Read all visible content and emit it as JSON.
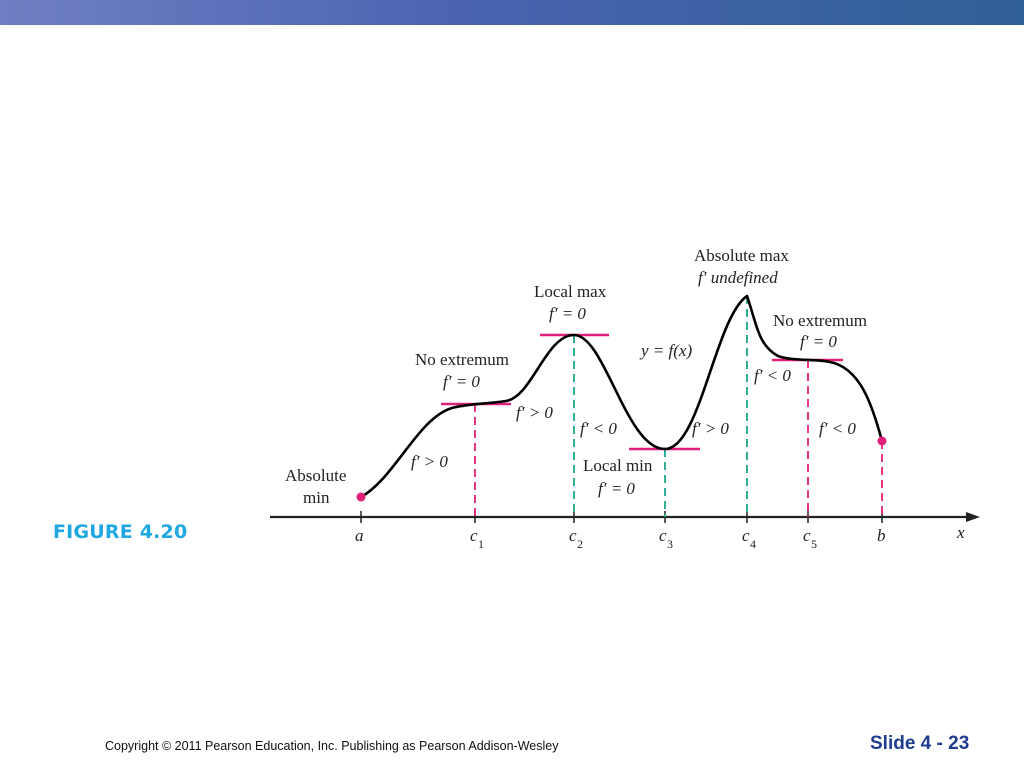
{
  "figure_label": "FIGURE 4.20",
  "footer": {
    "copyright": "Copyright © 2011 Pearson Education, Inc.  Publishing as Pearson Addison-Wesley",
    "slide": "Slide  4 -  23"
  },
  "diagram": {
    "axis_label": "x",
    "ticks": [
      {
        "main": "a",
        "sub": ""
      },
      {
        "main": "c",
        "sub": "1"
      },
      {
        "main": "c",
        "sub": "2"
      },
      {
        "main": "c",
        "sub": "3"
      },
      {
        "main": "c",
        "sub": "4"
      },
      {
        "main": "c",
        "sub": "5"
      },
      {
        "main": "b",
        "sub": ""
      }
    ],
    "annotations": {
      "absolute_min": [
        "Absolute",
        "min"
      ],
      "no_extremum_1": [
        "No extremum",
        "f′ = 0"
      ],
      "local_max": [
        "Local max",
        "f′ = 0"
      ],
      "local_min": [
        "Local min",
        "f′ = 0"
      ],
      "absolute_max": [
        "Absolute max",
        "f′ undefined"
      ],
      "no_extremum_2": [
        "No extremum",
        "f′ = 0"
      ],
      "curve_label": "y = f(x)"
    },
    "slopes": [
      "f′ > 0",
      "f′ > 0",
      "f′ < 0",
      "f′ > 0",
      "f′ < 0",
      "f′ < 0"
    ],
    "colors": {
      "curve": "#000000",
      "axis": "#222222",
      "tangent": "#e0207a",
      "dash_magenta": "#e0207a",
      "dash_teal": "#1aa88c",
      "endpoint": "#e0207a",
      "figure_label": "#1ea7e0",
      "slide_number": "#1f3d8f"
    }
  }
}
